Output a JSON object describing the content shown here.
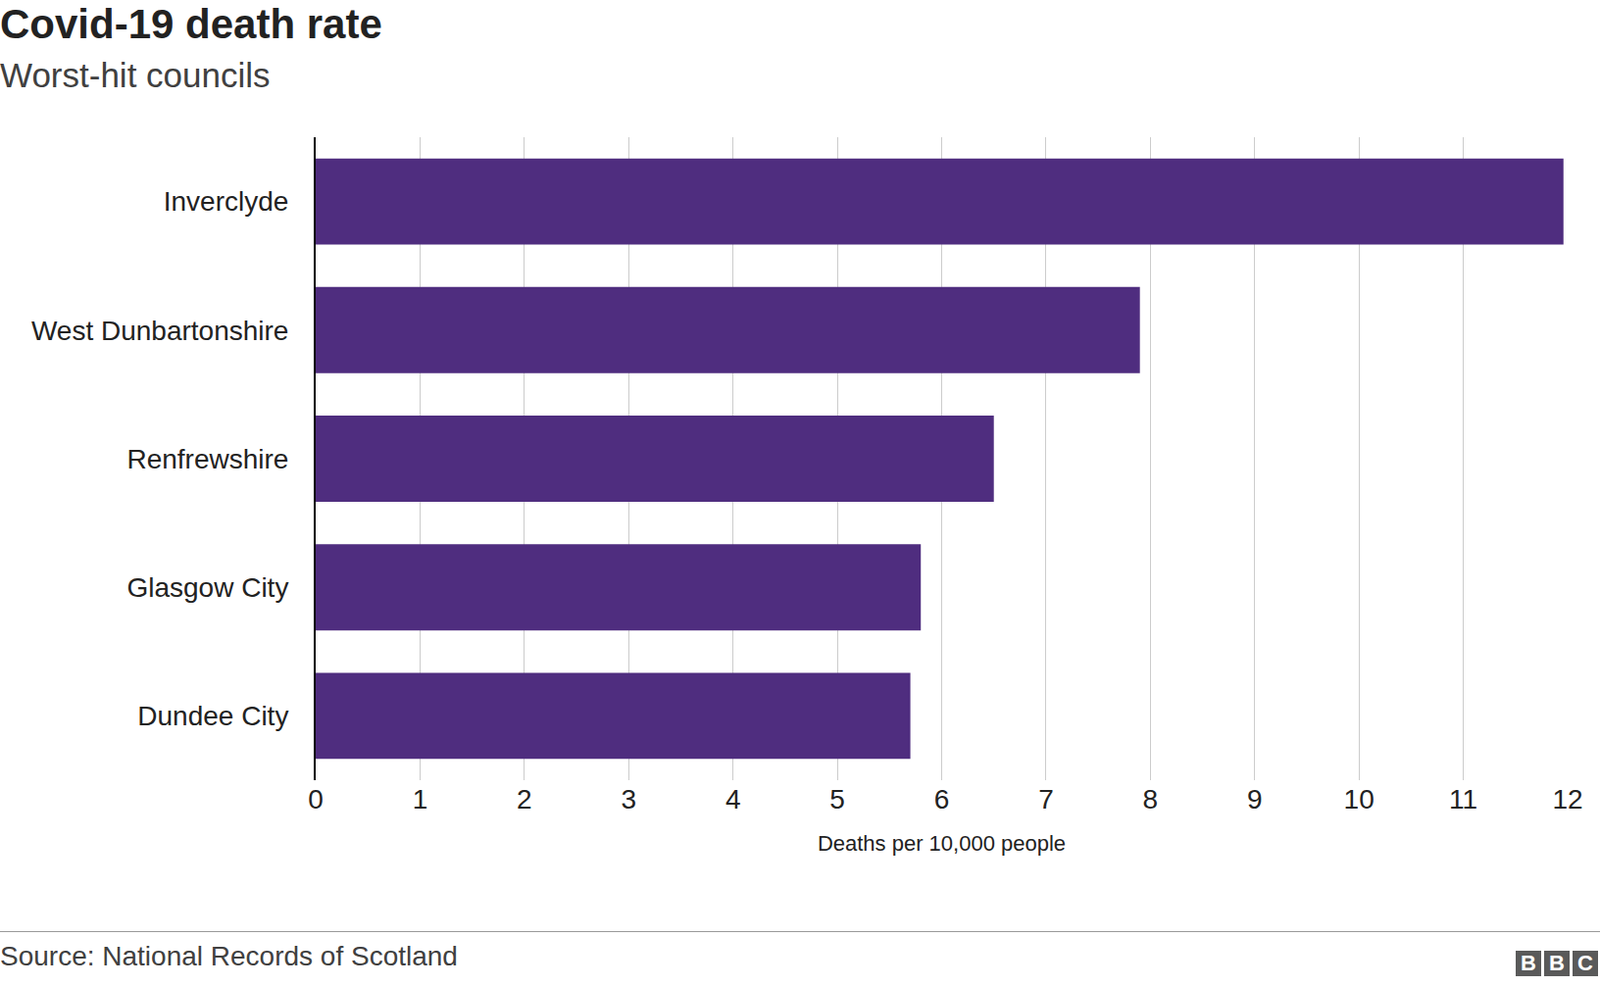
{
  "chart_data": {
    "type": "bar",
    "title": "Covid-19 death rate",
    "subtitle": "Worst-hit councils",
    "categories": [
      "Inverclyde",
      "West Dunbartonshire",
      "Renfrewshire",
      "Glasgow City",
      "Dundee City"
    ],
    "values": [
      11.96,
      7.9,
      6.5,
      5.8,
      5.7
    ],
    "color": "#4f2d7f",
    "orientation": "horizontal",
    "xlabel": "Deaths per 10,000 people",
    "xlim": [
      0,
      12
    ],
    "xticks": [
      0,
      1,
      2,
      3,
      4,
      5,
      6,
      7,
      8,
      9,
      10,
      11,
      12
    ],
    "grid": true,
    "source": "Source: National Records of Scotland",
    "logo": "BBC"
  }
}
